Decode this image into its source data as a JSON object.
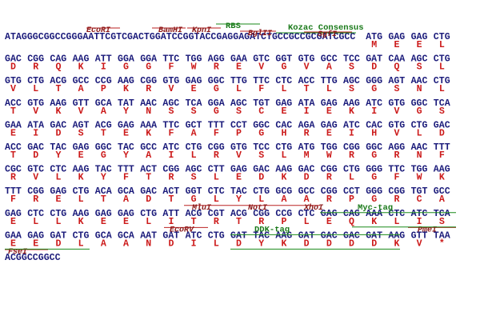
{
  "rows": [
    {
      "dna_prefix": "ATAGGGCGGCCGGGAATTCGTCGACTGGATCCGGTACCGAGGAGATCTGCCGCCGCGATCGCC",
      "codons": [
        "ATG",
        "GAG",
        "GAG",
        "CTG"
      ],
      "protein": [
        "M",
        "E",
        "E",
        "L"
      ],
      "features": [
        "EcoRI",
        "BamHI",
        "KpnI",
        "RBS",
        "BglII",
        "Kozac Consensus",
        "SgfI"
      ]
    },
    {
      "codons": [
        "GAC",
        "CGG",
        "CAG",
        "AAG",
        "ATT",
        "GGA",
        "GGA",
        "TTC",
        "TGG",
        "AGG",
        "GAA",
        "GTC",
        "GGT",
        "GTG",
        "GCC",
        "TCC",
        "GAT",
        "CAA",
        "AGC",
        "CTG"
      ],
      "protein": [
        "D",
        "R",
        "Q",
        "K",
        "I",
        "G",
        "G",
        "F",
        "W",
        "R",
        "E",
        "V",
        "G",
        "V",
        "A",
        "S",
        "D",
        "Q",
        "S",
        "L"
      ]
    },
    {
      "codons": [
        "GTG",
        "CTG",
        "ACG",
        "GCC",
        "CCG",
        "AAG",
        "CGG",
        "GTG",
        "GAG",
        "GGC",
        "TTG",
        "TTC",
        "CTC",
        "ACC",
        "TTG",
        "AGC",
        "GGG",
        "AGT",
        "AAC",
        "CTG"
      ],
      "protein": [
        "V",
        "L",
        "T",
        "A",
        "P",
        "K",
        "R",
        "V",
        "E",
        "G",
        "L",
        "F",
        "L",
        "T",
        "L",
        "S",
        "G",
        "S",
        "N",
        "L"
      ]
    },
    {
      "codons": [
        "ACC",
        "GTG",
        "AAG",
        "GTT",
        "GCA",
        "TAT",
        "AAC",
        "AGC",
        "TCA",
        "GGA",
        "AGC",
        "TGT",
        "GAG",
        "ATA",
        "GAG",
        "AAG",
        "ATC",
        "GTG",
        "GGC",
        "TCA"
      ],
      "protein": [
        "T",
        "V",
        "K",
        "V",
        "A",
        "Y",
        "N",
        "S",
        "S",
        "G",
        "S",
        "C",
        "E",
        "I",
        "E",
        "K",
        "I",
        "V",
        "G",
        "S"
      ]
    },
    {
      "codons": [
        "GAA",
        "ATA",
        "GAC",
        "AGT",
        "ACG",
        "GAG",
        "AAA",
        "TTC",
        "GCT",
        "TTT",
        "CCT",
        "GGC",
        "CAC",
        "AGA",
        "GAG",
        "ATC",
        "CAC",
        "GTG",
        "CTG",
        "GAC"
      ],
      "protein": [
        "E",
        "I",
        "D",
        "S",
        "T",
        "E",
        "K",
        "F",
        "A",
        "F",
        "P",
        "G",
        "H",
        "R",
        "E",
        "I",
        "H",
        "V",
        "L",
        "D"
      ]
    },
    {
      "codons": [
        "ACC",
        "GAC",
        "TAC",
        "GAG",
        "GGC",
        "TAC",
        "GCC",
        "ATC",
        "CTG",
        "CGG",
        "GTG",
        "TCC",
        "CTG",
        "ATG",
        "TGG",
        "CGG",
        "GGC",
        "AGG",
        "AAC",
        "TTT"
      ],
      "protein": [
        "T",
        "D",
        "Y",
        "E",
        "G",
        "Y",
        "A",
        "I",
        "L",
        "R",
        "V",
        "S",
        "L",
        "M",
        "W",
        "R",
        "G",
        "R",
        "N",
        "F"
      ]
    },
    {
      "codons": [
        "CGC",
        "GTC",
        "CTC",
        "AAG",
        "TAC",
        "TTT",
        "ACT",
        "CGG",
        "AGC",
        "CTT",
        "GAG",
        "GAC",
        "AAG",
        "GAC",
        "CGG",
        "CTG",
        "GGG",
        "TTC",
        "TGG",
        "AAG"
      ],
      "protein": [
        "R",
        "V",
        "L",
        "K",
        "Y",
        "F",
        "T",
        "R",
        "S",
        "L",
        "E",
        "D",
        "K",
        "D",
        "R",
        "L",
        "G",
        "F",
        "W",
        "K"
      ]
    },
    {
      "codons": [
        "TTT",
        "CGG",
        "GAG",
        "CTG",
        "ACA",
        "GCA",
        "GAC",
        "ACT",
        "GGT",
        "CTC",
        "TAC",
        "CTG",
        "GCG",
        "GCC",
        "CGG",
        "CCT",
        "GGG",
        "CGG",
        "TGT",
        "GCC"
      ],
      "protein": [
        "F",
        "R",
        "E",
        "L",
        "T",
        "A",
        "D",
        "T",
        "G",
        "L",
        "Y",
        "L",
        "A",
        "A",
        "R",
        "P",
        "G",
        "R",
        "C",
        "A"
      ]
    },
    {
      "codons": [
        "GAG",
        "CTC",
        "CTG",
        "AAG",
        "GAG",
        "GAG",
        "CTG",
        "ATT",
        "ACG",
        "CGT",
        "ACG",
        "CGG",
        "CCG",
        "CTC",
        "GAG",
        "CAG",
        "AAA",
        "CTC",
        "ATC",
        "TCA"
      ],
      "protein": [
        "E",
        "L",
        "L",
        "K",
        "E",
        "E",
        "L",
        "I",
        "T",
        "R",
        "T",
        "R",
        "P",
        "L",
        "E",
        "Q",
        "K",
        "L",
        "I",
        "S"
      ],
      "features": [
        "MluI",
        "NotI",
        "XhoI",
        "Myc-tag"
      ]
    },
    {
      "codons": [
        "GAA",
        "GAG",
        "GAT",
        "CTG",
        "GCA",
        "GCA",
        "AAT",
        "GAT",
        "ATC",
        "CTG",
        "GAT",
        "TAC",
        "AAG",
        "GAT",
        "GAC",
        "GAC",
        "GAT",
        "AAG",
        "GTT",
        "TAA"
      ],
      "protein": [
        "E",
        "E",
        "D",
        "L",
        "A",
        "A",
        "N",
        "D",
        "I",
        "L",
        "D",
        "Y",
        "K",
        "D",
        "D",
        "D",
        "D",
        "K",
        "V",
        "*"
      ],
      "features": [
        "EcoRV",
        "DDK-tag",
        "PmeI"
      ]
    },
    {
      "dna_prefix": "ACGGCCGGCC",
      "features": [
        "FseI"
      ]
    }
  ]
}
